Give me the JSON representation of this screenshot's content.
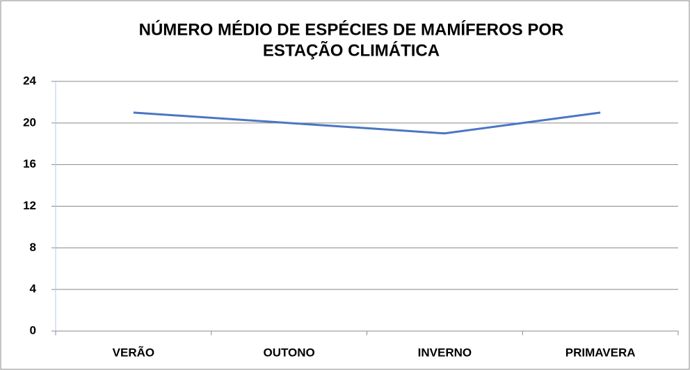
{
  "chart_data": {
    "type": "line",
    "title": [
      "NÚMERO MÉDIO DE ESPÉCIES DE MAMÍFEROS POR",
      "ESTAÇÃO CLIMÁTICA"
    ],
    "categories": [
      "VERÃO",
      "OUTONO",
      "INVERNO",
      "PRIMAVERA"
    ],
    "series": [
      {
        "color": "#4a76c4",
        "values": [
          21,
          20,
          19,
          21
        ]
      }
    ],
    "ylim": [
      0,
      24
    ],
    "yticks": [
      0,
      4,
      8,
      12,
      16,
      20,
      24
    ],
    "grid": true
  }
}
